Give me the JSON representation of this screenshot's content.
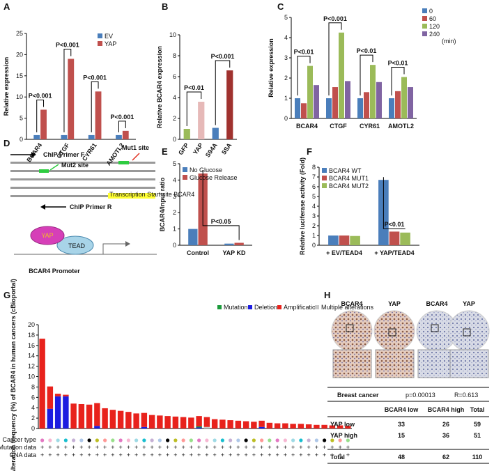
{
  "panel_labels": [
    "A",
    "B",
    "C",
    "D",
    "E",
    "F",
    "G",
    "H"
  ],
  "chart_data": [
    {
      "type": "bar",
      "ylabel": "Relative expression",
      "categories": [
        "BCAR4",
        "CTGF",
        "CYR61",
        "AMOTL2"
      ],
      "series": [
        {
          "name": "EV",
          "color": "#4a7ebb",
          "values": [
            1,
            1,
            1,
            1
          ]
        },
        {
          "name": "YAP",
          "color": "#c0504d",
          "values": [
            7,
            19,
            11.3,
            2
          ]
        }
      ],
      "ylim": [
        0,
        25
      ],
      "yticks": [
        0,
        5,
        10,
        15,
        20,
        25
      ],
      "annotations": [
        "P<0.001",
        "P<0.001",
        "P<0.001",
        "P<0.001"
      ]
    },
    {
      "type": "bar",
      "ylabel": "Relative BCAR4 expression",
      "categories": [
        "GFP",
        "YAP",
        "S94A",
        "5SA"
      ],
      "values": [
        1,
        3.6,
        1.1,
        6.6
      ],
      "colors": [
        "#9bbb59",
        "#e6b9b8",
        "#4a7ebb",
        "#a0322f"
      ],
      "ylim": [
        0,
        10
      ],
      "yticks": [
        0,
        2,
        4,
        6,
        8,
        10
      ],
      "annotations": [
        "P<0.01",
        "P<0.001"
      ]
    },
    {
      "type": "bar",
      "ylabel": "Relative expression",
      "categories": [
        "BCAR4",
        "CTGF",
        "CYR61",
        "AMOTL2"
      ],
      "legend_title": "(min)",
      "series": [
        {
          "name": "0",
          "color": "#4a7ebb",
          "values": [
            1,
            1,
            1,
            1
          ]
        },
        {
          "name": "60",
          "color": "#c0504d",
          "values": [
            0.75,
            1.55,
            1.3,
            1.35
          ]
        },
        {
          "name": "120",
          "color": "#9bbb59",
          "values": [
            2.6,
            4.25,
            2.65,
            2.05
          ]
        },
        {
          "name": "240",
          "color": "#8064a2",
          "values": [
            1.65,
            1.85,
            1.8,
            1.55
          ]
        }
      ],
      "ylim": [
        0,
        5
      ],
      "yticks": [
        0,
        1,
        2,
        3,
        4,
        5
      ],
      "annotations": [
        "P<0.01",
        "P<0.001",
        "P<0.01",
        "P<0.01"
      ]
    },
    {
      "type": "bar",
      "ylabel": "BCAR4/Input ratio",
      "categories": [
        "Control",
        "YAP KD"
      ],
      "series": [
        {
          "name": "No Glucose",
          "color": "#4a7ebb",
          "values": [
            1,
            0.1
          ]
        },
        {
          "name": "Glucose Release",
          "color": "#c0504d",
          "values": [
            4.4,
            0.15
          ]
        }
      ],
      "ylim": [
        0,
        5
      ],
      "yticks": [
        0,
        1,
        2,
        3,
        4,
        5
      ],
      "annotations": [
        "P<0.05"
      ]
    },
    {
      "type": "bar",
      "ylabel": "Relative luciferase activity  (Fold)",
      "categories": [
        "+ EV/TEAD4",
        "+ YAP/TEAD4"
      ],
      "series": [
        {
          "name": "BCAR4 WT",
          "color": "#4a7ebb",
          "values": [
            1,
            6.7
          ]
        },
        {
          "name": "BCAR4 MUT1",
          "color": "#c0504d",
          "values": [
            1,
            1.4
          ]
        },
        {
          "name": "BCAR4 MUT2",
          "color": "#9bbb59",
          "values": [
            0.95,
            1.3
          ]
        }
      ],
      "ylim": [
        0,
        8
      ],
      "yticks": [
        0,
        1,
        2,
        3,
        4,
        5,
        6,
        7,
        8
      ],
      "annotations": [
        "P<0.01"
      ]
    },
    {
      "type": "stacked_bar",
      "ylabel": "Alteration frequency (%) of BCAR4 in human cancers (cBioportal)",
      "row_labels": [
        "Cancer type",
        "Mutation data",
        "CNA data"
      ],
      "categories": [
        null,
        null,
        null,
        null,
        null,
        null,
        null,
        null,
        null,
        null,
        null,
        null,
        null,
        null,
        null,
        null,
        null,
        null,
        null,
        null,
        null,
        null,
        null,
        null,
        null,
        null,
        null,
        null,
        null,
        null,
        null,
        null,
        null,
        null,
        null,
        null,
        null,
        null,
        null,
        null
      ],
      "series": [
        {
          "name": "Mutation",
          "color": "#1a9a3a",
          "values": [
            0,
            0,
            0,
            0,
            0,
            0,
            0,
            0,
            0,
            0,
            0,
            0,
            0,
            0,
            0,
            0,
            0,
            0,
            0,
            0,
            0.2,
            0,
            0,
            0,
            0,
            0,
            0,
            0,
            0,
            0,
            0,
            0,
            0,
            0,
            0,
            0,
            0,
            0,
            0,
            0
          ]
        },
        {
          "name": "Deletion",
          "color": "#1c1ce0",
          "values": [
            0,
            3.8,
            6.2,
            6.2,
            0,
            0,
            0,
            0.5,
            0,
            0,
            0,
            0,
            0,
            0.3,
            0,
            0,
            0,
            0,
            0,
            0,
            0.2,
            0,
            0,
            0,
            0,
            0,
            0,
            0,
            0.3,
            0,
            0,
            0,
            0,
            0,
            0,
            0,
            0,
            0,
            0,
            0
          ]
        },
        {
          "name": "Amplification",
          "color": "#e8221c",
          "values": [
            17.3,
            4.3,
            0.5,
            0.3,
            4.8,
            4.7,
            4.6,
            4.4,
            3.9,
            3.6,
            3.4,
            3.2,
            2.9,
            2.7,
            2.6,
            2.5,
            2.4,
            2.3,
            2.2,
            2.1,
            2.0,
            1.9,
            1.8,
            1.7,
            1.6,
            1.5,
            1.4,
            1.3,
            1.2,
            1.1,
            1.0,
            1.0,
            0.9,
            0.9,
            0.8,
            0.7,
            0.7,
            0.6,
            0.6,
            0.5
          ]
        },
        {
          "name": "Multiple alterations",
          "color": "#c8c8c8",
          "values": [
            0,
            0,
            0,
            0,
            0,
            0,
            0,
            0,
            0,
            0,
            0,
            0,
            0,
            0,
            0,
            0,
            0,
            0,
            0,
            0,
            0,
            0.3,
            0,
            0,
            0,
            0,
            0,
            0,
            0,
            0,
            0,
            0,
            0,
            0,
            0,
            0,
            0,
            0,
            0,
            0
          ]
        }
      ],
      "ylim": [
        0,
        20
      ],
      "yticks": [
        0,
        2,
        4,
        6,
        8,
        10,
        12,
        14,
        16,
        18,
        20
      ]
    }
  ],
  "diagram": {
    "primer_f": "ChIP Primer F",
    "mut1": "Mut1 site",
    "mut2": "Mut2 site",
    "primer_r": "ChIP Primer R",
    "tss": "Transcription Start site BCAR4",
    "yap": "YAP",
    "tead": "TEAD",
    "promoter": "BCAR4 Promoter"
  },
  "h_panel": {
    "images": [
      "BCAR4",
      "YAP",
      "BCAR4",
      "YAP"
    ],
    "table": {
      "title": "Breast cancer",
      "p": "p=0.00013",
      "r": "R=0.613",
      "header": [
        "BCAR4 low",
        "BCAR4 high",
        "Total"
      ],
      "rows": [
        [
          "YAP low",
          "33",
          "26",
          "59"
        ],
        [
          "YAP high",
          "15",
          "36",
          "51"
        ],
        [
          "Total",
          "48",
          "62",
          "110"
        ]
      ]
    }
  }
}
